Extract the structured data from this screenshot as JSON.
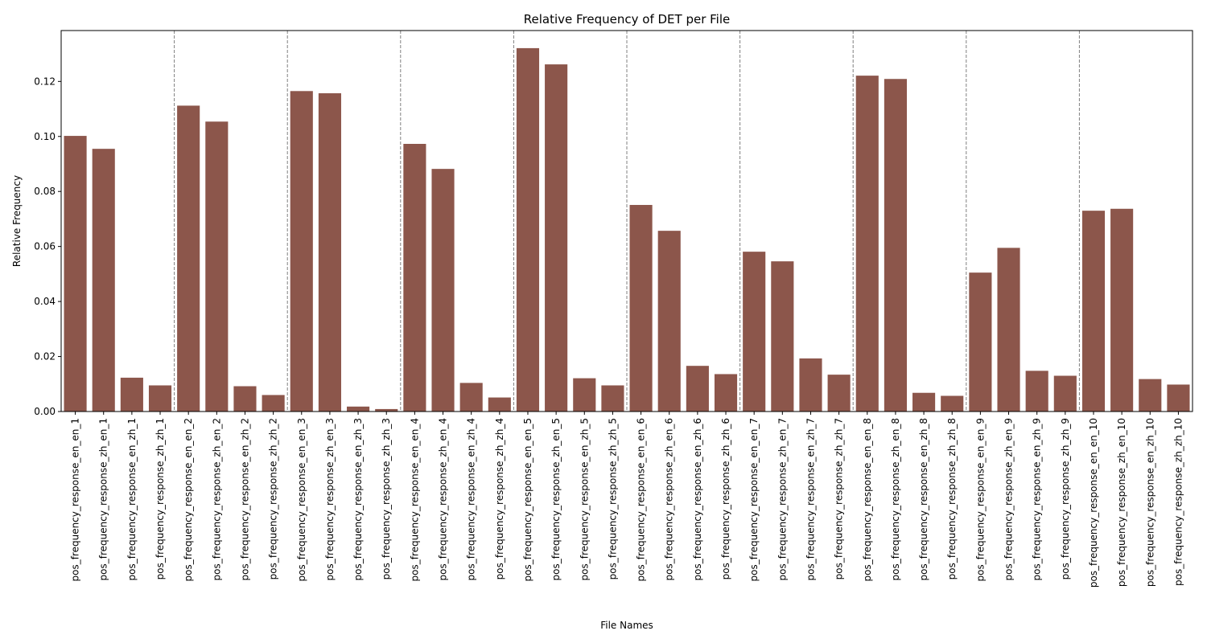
{
  "chart_data": {
    "type": "bar",
    "title": "Relative Frequency of DET per File",
    "xlabel": "File Names",
    "ylabel": "Relative Frequency",
    "ylim": [
      0,
      0.1385
    ],
    "yticks": [
      0.0,
      0.02,
      0.04,
      0.06,
      0.08,
      0.1,
      0.12
    ],
    "ytick_labels": [
      "0.00",
      "0.02",
      "0.04",
      "0.06",
      "0.08",
      "0.10",
      "0.12"
    ],
    "bar_color": "#8c564b",
    "separator_color": "#808080",
    "group_size": 4,
    "grid": false,
    "categories": [
      "pos_frequency_response_en_en_1",
      "pos_frequency_response_zh_en_1",
      "pos_frequency_response_en_zh_1",
      "pos_frequency_response_zh_zh_1",
      "pos_frequency_response_en_en_2",
      "pos_frequency_response_zh_en_2",
      "pos_frequency_response_en_zh_2",
      "pos_frequency_response_zh_zh_2",
      "pos_frequency_response_en_en_3",
      "pos_frequency_response_zh_en_3",
      "pos_frequency_response_en_zh_3",
      "pos_frequency_response_zh_zh_3",
      "pos_frequency_response_en_en_4",
      "pos_frequency_response_zh_en_4",
      "pos_frequency_response_en_zh_4",
      "pos_frequency_response_zh_zh_4",
      "pos_frequency_response_en_en_5",
      "pos_frequency_response_zh_en_5",
      "pos_frequency_response_en_zh_5",
      "pos_frequency_response_zh_zh_5",
      "pos_frequency_response_en_en_6",
      "pos_frequency_response_zh_en_6",
      "pos_frequency_response_en_zh_6",
      "pos_frequency_response_zh_zh_6",
      "pos_frequency_response_en_en_7",
      "pos_frequency_response_zh_en_7",
      "pos_frequency_response_en_zh_7",
      "pos_frequency_response_zh_zh_7",
      "pos_frequency_response_en_en_8",
      "pos_frequency_response_zh_en_8",
      "pos_frequency_response_en_zh_8",
      "pos_frequency_response_zh_zh_8",
      "pos_frequency_response_en_en_9",
      "pos_frequency_response_zh_en_9",
      "pos_frequency_response_en_zh_9",
      "pos_frequency_response_zh_zh_9",
      "pos_frequency_response_en_en_10",
      "pos_frequency_response_zh_en_10",
      "pos_frequency_response_en_zh_10",
      "pos_frequency_response_zh_zh_10"
    ],
    "values": [
      0.1002,
      0.0955,
      0.0123,
      0.0095,
      0.1112,
      0.1054,
      0.0092,
      0.006,
      0.1165,
      0.1157,
      0.0018,
      0.0009,
      0.0973,
      0.0882,
      0.0104,
      0.0051,
      0.1321,
      0.1262,
      0.0121,
      0.0095,
      0.0751,
      0.0657,
      0.0166,
      0.0136,
      0.0581,
      0.0546,
      0.0193,
      0.0134,
      0.1221,
      0.1209,
      0.0068,
      0.0057,
      0.0505,
      0.0595,
      0.0148,
      0.013,
      0.073,
      0.0737,
      0.0118,
      0.0098
    ]
  }
}
